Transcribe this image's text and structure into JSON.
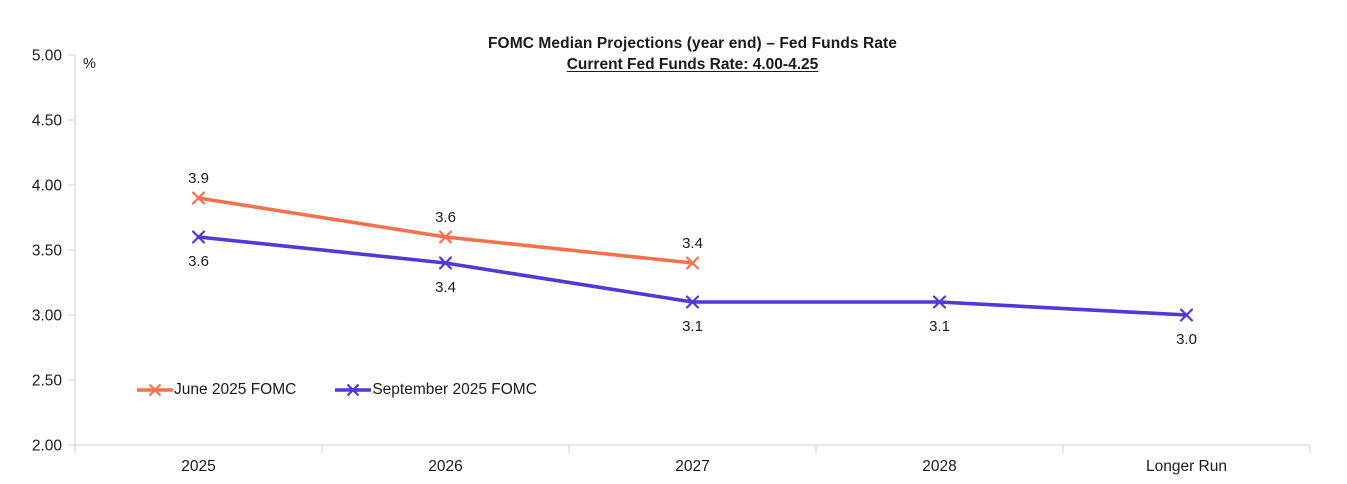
{
  "title": "FOMC Median Projections (year end) – Fed Funds Rate",
  "subtitle": "Current Fed Funds Rate: 4.00-4.25",
  "chart_data": {
    "type": "line",
    "categories": [
      "2025",
      "2026",
      "2027",
      "2028",
      "Longer Run"
    ],
    "y_axis": {
      "unit_label": "%",
      "min": 2.0,
      "max": 5.0,
      "tick_step": 0.5,
      "tick_labels": [
        "5.00",
        "4.50",
        "4.00",
        "3.50",
        "3.00",
        "2.50",
        "2.00"
      ]
    },
    "grid": false,
    "legend": {
      "position": "inside-bottom-left",
      "marker": "x"
    },
    "series": [
      {
        "name": "June 2025 FOMC",
        "color": "#F4714B",
        "marker_color": "#F4714B",
        "values": [
          3.9,
          3.6,
          3.4,
          null,
          null
        ],
        "point_labels": [
          "3.9",
          "3.6",
          "3.4",
          null,
          null
        ],
        "label_side": "above"
      },
      {
        "name": "September 2025 FOMC",
        "color": "#5536D6",
        "marker_color": "#5536D6",
        "values": [
          3.6,
          3.4,
          3.1,
          3.1,
          3.0
        ],
        "point_labels": [
          "3.6",
          "3.4",
          "3.1",
          "3.1",
          "3.0"
        ],
        "label_side": "below"
      }
    ]
  },
  "style": {
    "axis_color": "#D9D6D1",
    "text_color": "#1A1A1A"
  }
}
